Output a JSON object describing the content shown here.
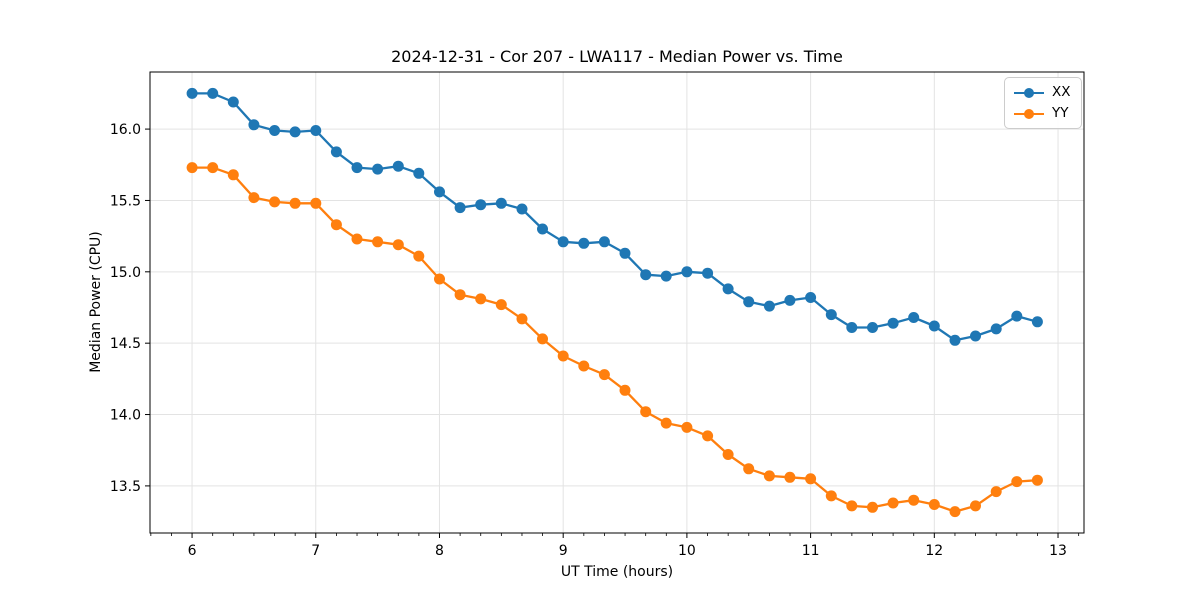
{
  "chart_data": {
    "type": "line",
    "title": "2024-12-31 - Cor 207 - LWA117 - Median Power vs. Time",
    "xlabel": "UT Time (hours)",
    "ylabel": "Median Power (CPU)",
    "xlim": [
      5.66,
      13.21
    ],
    "ylim": [
      13.17,
      16.4
    ],
    "x_ticks": [
      6,
      7,
      8,
      9,
      10,
      11,
      12,
      13
    ],
    "x_minor_step": 0.16667,
    "y_ticks": [
      13.5,
      14.0,
      14.5,
      15.0,
      15.5,
      16.0
    ],
    "grid": true,
    "legend_position": "upper right",
    "x": [
      6.0,
      6.167,
      6.333,
      6.5,
      6.667,
      6.833,
      7.0,
      7.167,
      7.333,
      7.5,
      7.667,
      7.833,
      8.0,
      8.167,
      8.333,
      8.5,
      8.667,
      8.833,
      9.0,
      9.167,
      9.333,
      9.5,
      9.667,
      9.833,
      10.0,
      10.167,
      10.333,
      10.5,
      10.667,
      10.833,
      11.0,
      11.167,
      11.333,
      11.5,
      11.667,
      11.833,
      12.0,
      12.167,
      12.333,
      12.5,
      12.667,
      12.833
    ],
    "series": [
      {
        "name": "XX",
        "color": "#1f77b4",
        "values": [
          16.25,
          16.25,
          16.19,
          16.03,
          15.99,
          15.98,
          15.99,
          15.84,
          15.73,
          15.72,
          15.74,
          15.69,
          15.56,
          15.45,
          15.47,
          15.48,
          15.44,
          15.3,
          15.21,
          15.2,
          15.21,
          15.13,
          14.98,
          14.97,
          15.0,
          14.99,
          14.88,
          14.79,
          14.76,
          14.8,
          14.82,
          14.7,
          14.61,
          14.61,
          14.64,
          14.68,
          14.62,
          14.52,
          14.55,
          14.6,
          14.69,
          14.65
        ]
      },
      {
        "name": "YY",
        "color": "#ff7f0e",
        "values": [
          15.73,
          15.73,
          15.68,
          15.52,
          15.49,
          15.48,
          15.48,
          15.33,
          15.23,
          15.21,
          15.19,
          15.11,
          14.95,
          14.84,
          14.81,
          14.77,
          14.67,
          14.53,
          14.41,
          14.34,
          14.28,
          14.17,
          14.02,
          13.94,
          13.91,
          13.85,
          13.72,
          13.62,
          13.57,
          13.56,
          13.55,
          13.43,
          13.36,
          13.35,
          13.38,
          13.4,
          13.37,
          13.32,
          13.36,
          13.46,
          13.53,
          13.54
        ]
      }
    ]
  }
}
